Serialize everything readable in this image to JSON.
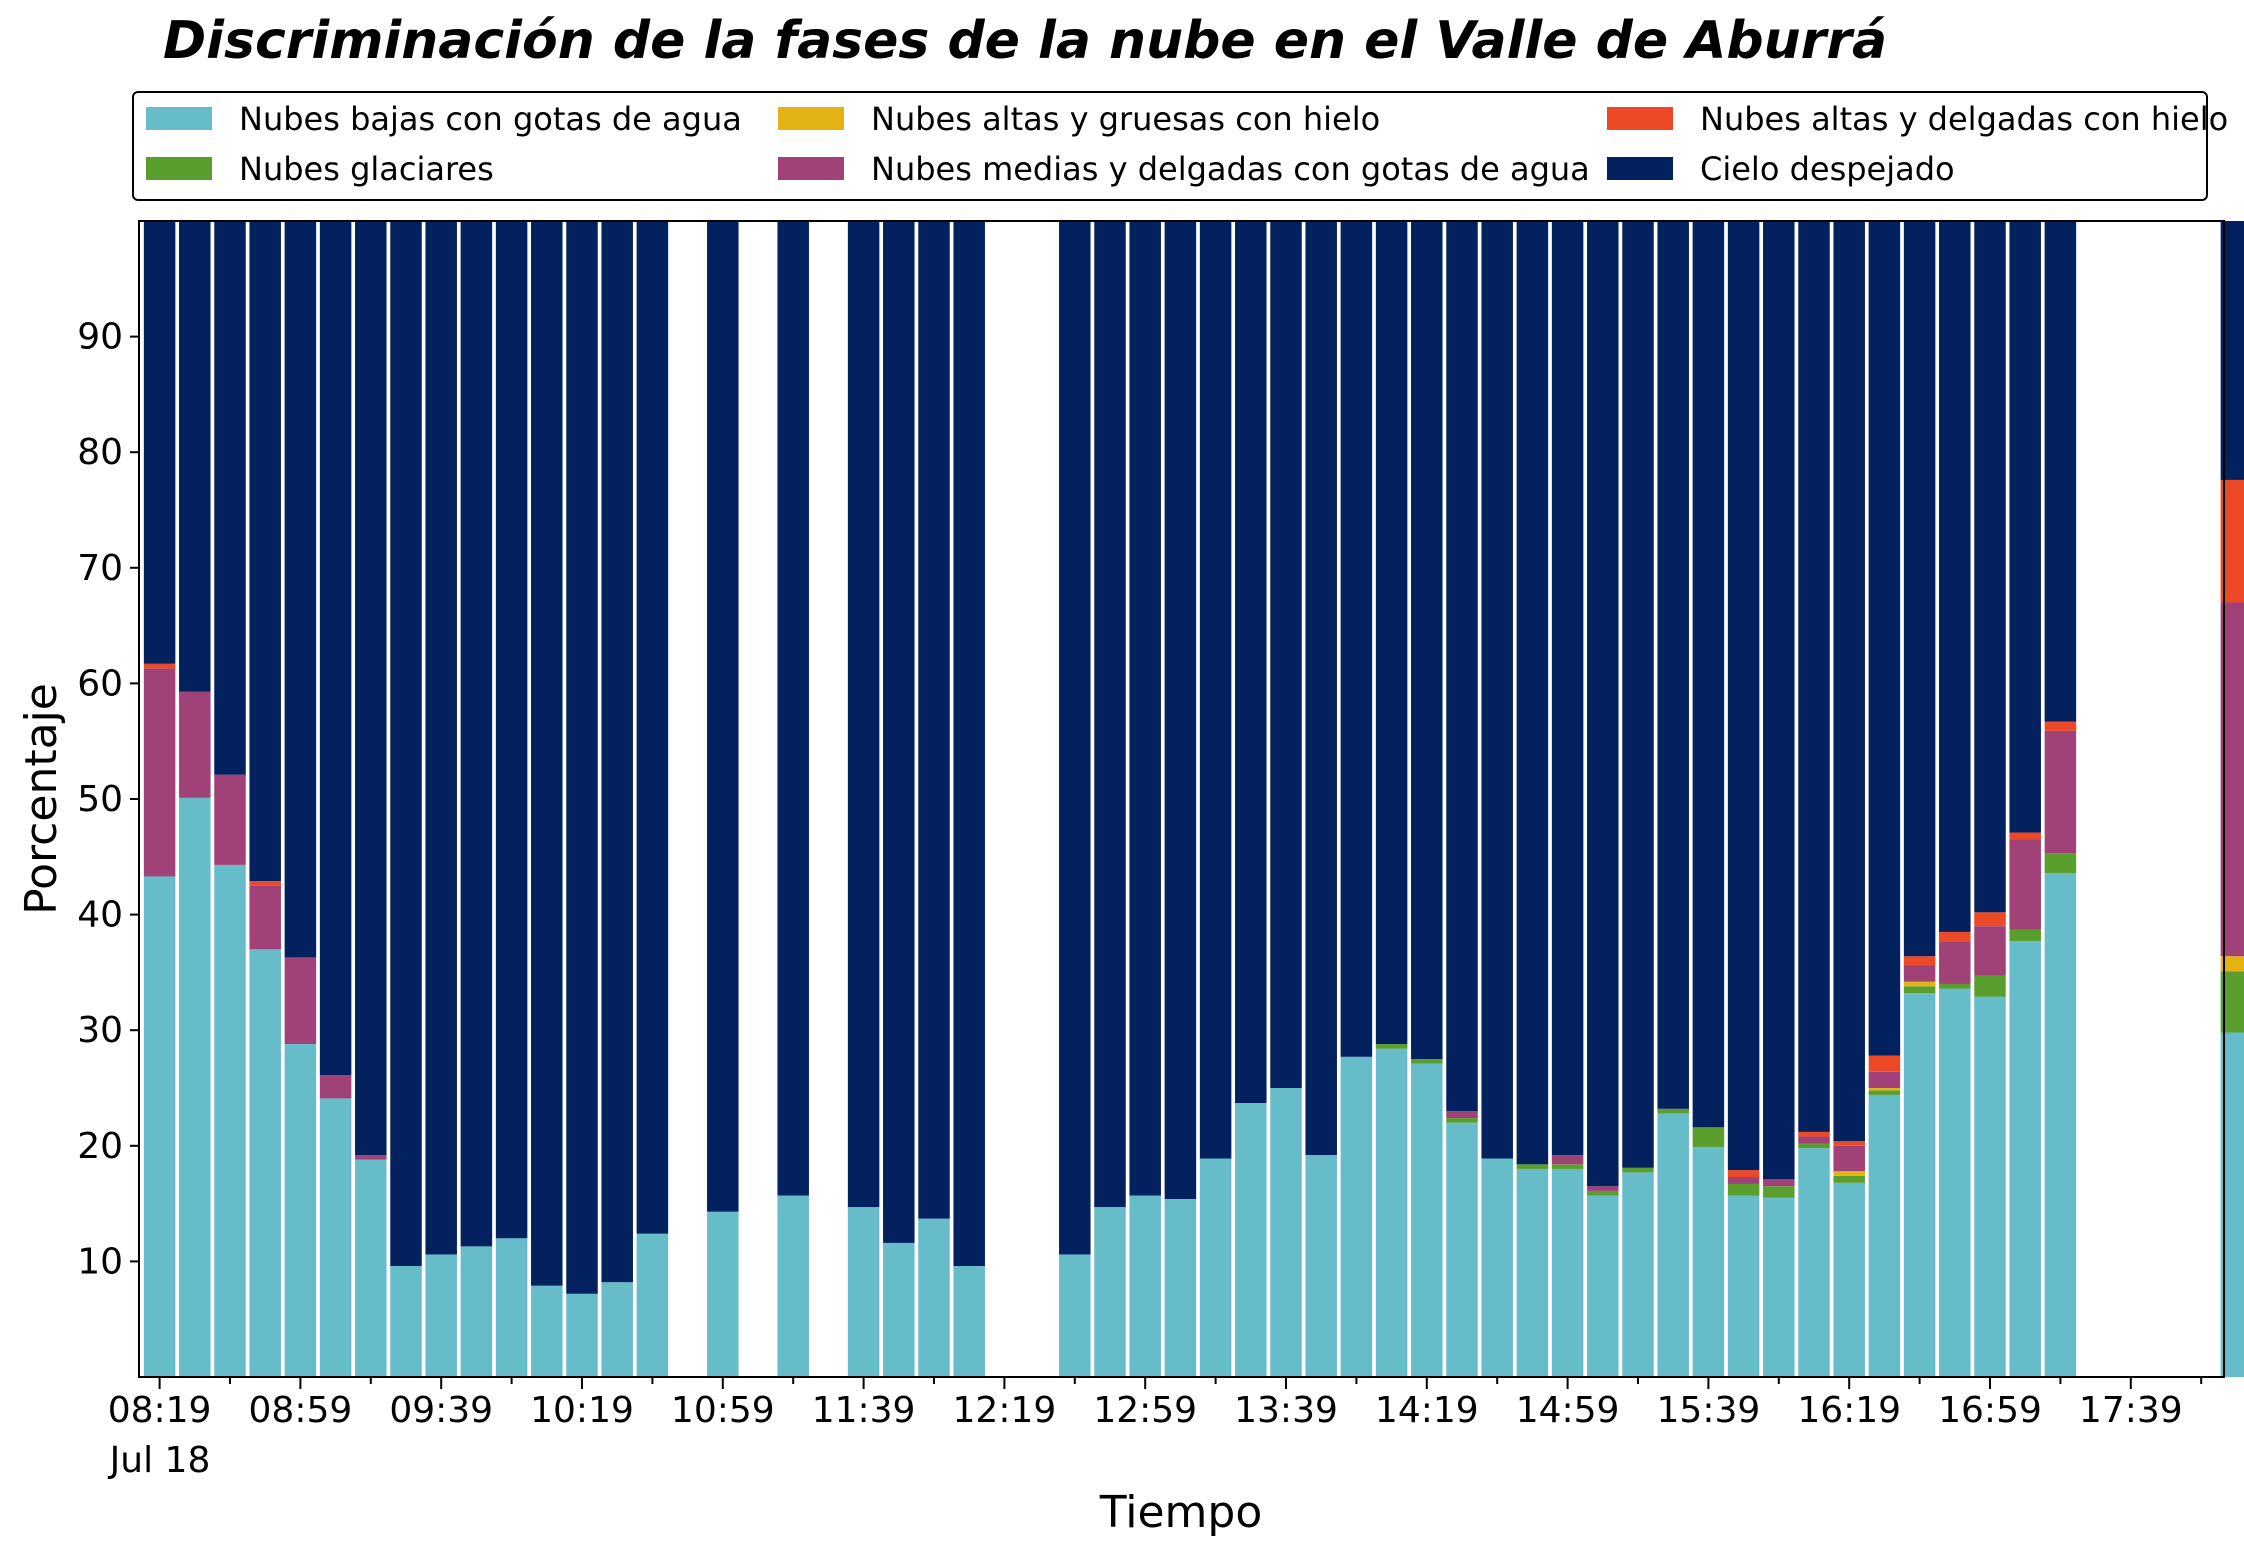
{
  "chart_data": {
    "type": "bar",
    "stacked": true,
    "title": "Discriminación de la fases de la nube en el Valle de Aburrá",
    "xlabel": "Tiempo",
    "ylabel": "Porcentaje",
    "ylim": [
      0,
      100
    ],
    "yticks": [
      10,
      20,
      30,
      40,
      50,
      60,
      70,
      80,
      90
    ],
    "grid": false,
    "legend_position": "top",
    "x_tick_labels": [
      "08:19",
      "08:59",
      "09:39",
      "10:19",
      "10:59",
      "11:39",
      "12:19",
      "12:59",
      "13:39",
      "14:19",
      "14:59",
      "15:39",
      "16:19",
      "16:59",
      "17:39"
    ],
    "x_date_label": "Jul 18",
    "series": [
      {
        "name": "Nubes bajas con gotas de agua",
        "color": "#66bdc9"
      },
      {
        "name": "Nubes glaciares",
        "color": "#5a9e2e"
      },
      {
        "name": "Nubes altas y gruesas con hielo",
        "color": "#e3b314"
      },
      {
        "name": "Nubes medias y delgadas con gotas de agua",
        "color": "#a04178"
      },
      {
        "name": "Nubes altas y delgadas con hielo",
        "color": "#ec4a27"
      },
      {
        "name": "Cielo despejado",
        "color": "#03205f"
      }
    ],
    "bars": [
      {
        "time": "08:19",
        "values": [
          43.3,
          0,
          0,
          18.0,
          0.4,
          38.3
        ]
      },
      {
        "time": "08:29",
        "values": [
          50.1,
          0,
          0,
          9.2,
          0,
          40.7
        ]
      },
      {
        "time": "08:39",
        "values": [
          44.3,
          0,
          0,
          7.8,
          0,
          47.9
        ]
      },
      {
        "time": "08:49",
        "values": [
          37.0,
          0,
          0,
          5.5,
          0.4,
          57.1
        ]
      },
      {
        "time": "08:59",
        "values": [
          28.8,
          0,
          0,
          7.5,
          0,
          63.7
        ]
      },
      {
        "time": "09:09",
        "values": [
          24.1,
          0,
          0,
          2.0,
          0,
          73.9
        ]
      },
      {
        "time": "09:19",
        "values": [
          18.8,
          0,
          0,
          0.4,
          0,
          80.8
        ]
      },
      {
        "time": "09:29",
        "values": [
          9.6,
          0,
          0,
          0,
          0,
          90.4
        ]
      },
      {
        "time": "09:39",
        "values": [
          10.6,
          0,
          0,
          0,
          0,
          89.4
        ]
      },
      {
        "time": "09:49",
        "values": [
          11.3,
          0,
          0,
          0,
          0,
          88.7
        ]
      },
      {
        "time": "09:59",
        "values": [
          12.0,
          0,
          0,
          0,
          0,
          88.0
        ]
      },
      {
        "time": "10:09",
        "values": [
          7.9,
          0,
          0,
          0,
          0,
          92.1
        ]
      },
      {
        "time": "10:19",
        "values": [
          7.2,
          0,
          0,
          0,
          0,
          92.8
        ]
      },
      {
        "time": "10:29",
        "values": [
          8.2,
          0,
          0,
          0,
          0,
          91.8
        ]
      },
      {
        "time": "10:39",
        "values": [
          12.4,
          0,
          0,
          0,
          0,
          87.6
        ]
      },
      {
        "time": "10:59",
        "values": [
          14.3,
          0,
          0,
          0,
          0,
          85.7
        ]
      },
      {
        "time": "11:19",
        "values": [
          15.7,
          0,
          0,
          0,
          0,
          84.3
        ]
      },
      {
        "time": "11:39",
        "values": [
          14.7,
          0,
          0,
          0,
          0,
          85.3
        ]
      },
      {
        "time": "11:49",
        "values": [
          11.6,
          0,
          0,
          0,
          0,
          88.4
        ]
      },
      {
        "time": "11:59",
        "values": [
          13.7,
          0,
          0,
          0,
          0,
          86.3
        ]
      },
      {
        "time": "12:09",
        "values": [
          9.6,
          0,
          0,
          0,
          0,
          90.4
        ]
      },
      {
        "time": "12:39",
        "values": [
          10.6,
          0,
          0,
          0,
          0,
          89.4
        ]
      },
      {
        "time": "12:49",
        "values": [
          14.7,
          0,
          0,
          0,
          0,
          85.3
        ]
      },
      {
        "time": "12:59",
        "values": [
          15.7,
          0,
          0,
          0,
          0,
          84.3
        ]
      },
      {
        "time": "13:09",
        "values": [
          15.4,
          0,
          0,
          0,
          0,
          84.6
        ]
      },
      {
        "time": "13:19",
        "values": [
          18.9,
          0,
          0,
          0,
          0,
          81.1
        ]
      },
      {
        "time": "13:29",
        "values": [
          23.7,
          0,
          0,
          0,
          0,
          76.3
        ]
      },
      {
        "time": "13:39",
        "values": [
          25.0,
          0,
          0,
          0,
          0,
          75.0
        ]
      },
      {
        "time": "13:49",
        "values": [
          19.2,
          0,
          0,
          0,
          0,
          80.8
        ]
      },
      {
        "time": "13:59",
        "values": [
          27.7,
          0,
          0,
          0,
          0,
          72.3
        ]
      },
      {
        "time": "14:09",
        "values": [
          28.4,
          0.4,
          0,
          0,
          0,
          71.2
        ]
      },
      {
        "time": "14:19",
        "values": [
          27.1,
          0.4,
          0,
          0,
          0,
          72.5
        ]
      },
      {
        "time": "14:29",
        "values": [
          22.0,
          0.4,
          0,
          0.6,
          0,
          77.0
        ]
      },
      {
        "time": "14:39",
        "values": [
          18.9,
          0,
          0,
          0,
          0,
          81.1
        ]
      },
      {
        "time": "14:49",
        "values": [
          18.0,
          0.4,
          0,
          0,
          0,
          81.6
        ]
      },
      {
        "time": "14:59",
        "values": [
          18.0,
          0.4,
          0,
          0.8,
          0,
          80.8
        ]
      },
      {
        "time": "15:09",
        "values": [
          15.7,
          0.4,
          0,
          0.4,
          0,
          83.5
        ]
      },
      {
        "time": "15:19",
        "values": [
          17.7,
          0.4,
          0,
          0,
          0,
          81.9
        ]
      },
      {
        "time": "15:29",
        "values": [
          22.8,
          0.4,
          0,
          0,
          0,
          76.8
        ]
      },
      {
        "time": "15:39",
        "values": [
          19.9,
          1.7,
          0,
          0,
          0,
          78.4
        ]
      },
      {
        "time": "15:49",
        "values": [
          15.7,
          1.0,
          0,
          0.6,
          0.6,
          82.1
        ]
      },
      {
        "time": "15:59",
        "values": [
          15.5,
          1.0,
          0,
          0.6,
          0,
          82.9
        ]
      },
      {
        "time": "16:09",
        "values": [
          19.8,
          0.4,
          0,
          0.6,
          0.4,
          78.8
        ]
      },
      {
        "time": "16:19",
        "values": [
          16.8,
          0.6,
          0.4,
          2.2,
          0.4,
          79.6
        ]
      },
      {
        "time": "16:29",
        "values": [
          24.4,
          0.4,
          0.2,
          1.4,
          1.4,
          72.2
        ]
      },
      {
        "time": "16:39",
        "values": [
          33.2,
          0.6,
          0.4,
          1.4,
          0.8,
          63.6
        ]
      },
      {
        "time": "16:49",
        "values": [
          33.6,
          0.4,
          0,
          3.7,
          0.8,
          61.5
        ]
      },
      {
        "time": "16:59",
        "values": [
          32.9,
          1.8,
          0,
          4.3,
          1.2,
          59.8
        ]
      },
      {
        "time": "17:09",
        "values": [
          37.7,
          1.0,
          0,
          7.8,
          0.6,
          52.9
        ]
      },
      {
        "time": "17:19",
        "values": [
          43.6,
          1.7,
          0,
          10.6,
          0.8,
          43.3
        ]
      },
      {
        "time": "18:09",
        "values": [
          29.8,
          5.3,
          1.3,
          30.6,
          10.6,
          22.4
        ]
      }
    ]
  }
}
